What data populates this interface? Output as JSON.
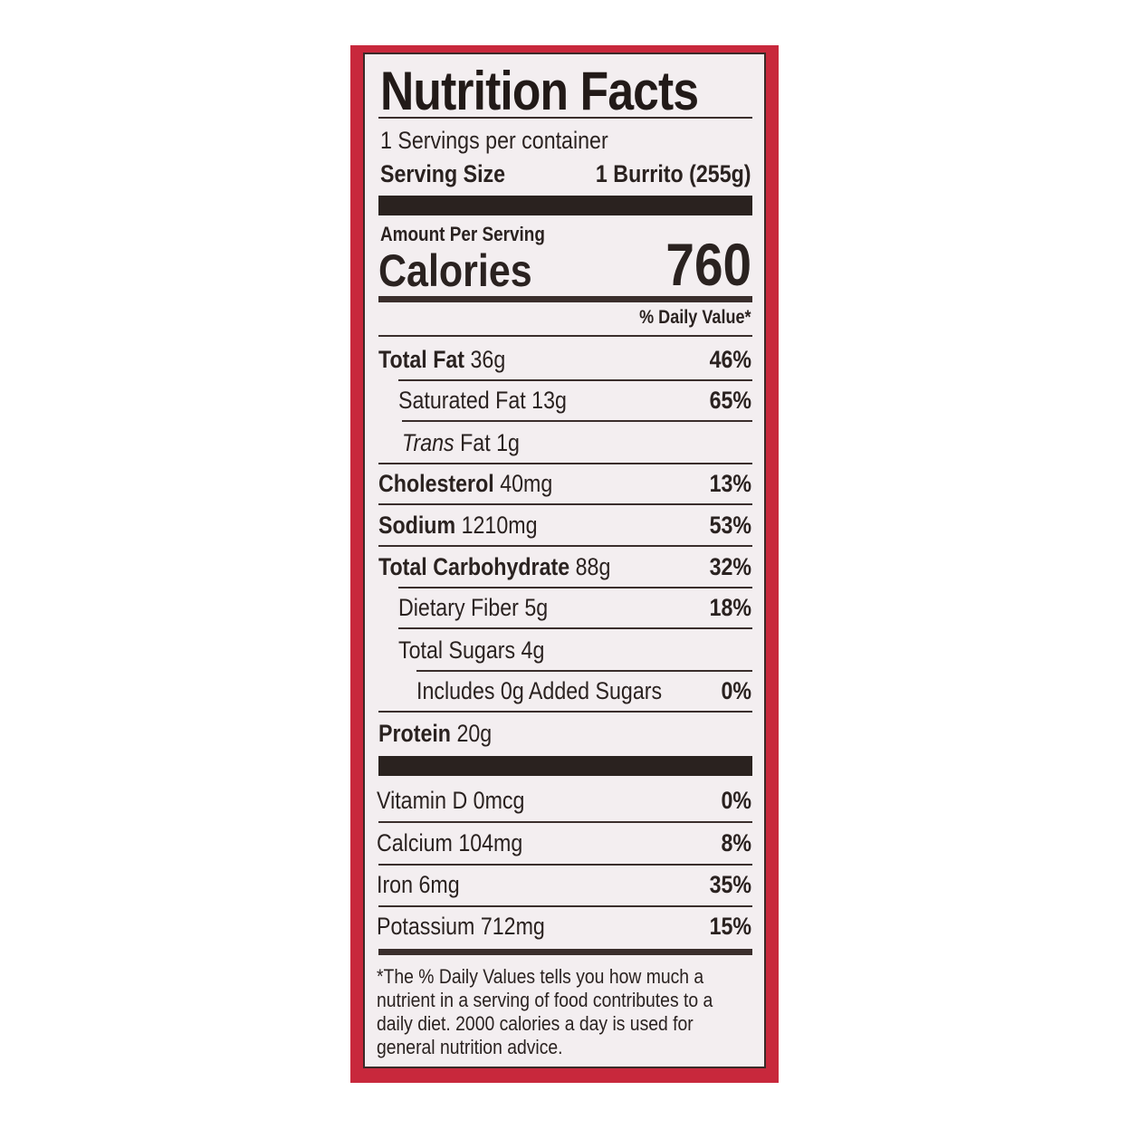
{
  "label": {
    "title": "Nutrition Facts",
    "servings_per_container": "1 Servings per container",
    "serving_size_label": "Serving Size",
    "serving_size_value": "1 Burrito (255g)",
    "amount_per_serving": "Amount Per Serving",
    "calories_label": "Calories",
    "calories_value": "760",
    "daily_value_header": "% Daily Value*",
    "nutrients": [
      {
        "name": "Total Fat",
        "amount": "36g",
        "dv": "46%"
      },
      {
        "name": "Saturated Fat",
        "amount": "13g",
        "dv": "65%"
      },
      {
        "name": "Trans",
        "name_suffix": "Fat",
        "amount": "1g",
        "dv": ""
      },
      {
        "name": "Cholesterol",
        "amount": "40mg",
        "dv": "13%"
      },
      {
        "name": "Sodium",
        "amount": "1210mg",
        "dv": "53%"
      },
      {
        "name": "Total Carbohydrate",
        "amount": "88g",
        "dv": "32%"
      },
      {
        "name": "Dietary Fiber",
        "amount": "5g",
        "dv": "18%"
      },
      {
        "name": "Total Sugars",
        "amount": "4g",
        "dv": ""
      },
      {
        "name": "Includes 0g Added Sugars",
        "amount": "",
        "dv": "0%"
      },
      {
        "name": "Protein",
        "amount": "20g",
        "dv": ""
      }
    ],
    "vitamins": [
      {
        "text": "Vitamin D 0mcg",
        "dv": "0%"
      },
      {
        "text": "Calcium 104mg",
        "dv": "8%"
      },
      {
        "text": "Iron 6mg",
        "dv": "35%"
      },
      {
        "text": "Potassium 712mg",
        "dv": "15%"
      }
    ],
    "footnote": "*The % Daily Values tells you how much a nutrient in a serving of food contributes to a daily diet. 2000 calories a day is used for general nutrition advice.",
    "colors": {
      "package_red": "#c8283c",
      "ink": "#2a2220",
      "label_bg": "#f3eef0"
    }
  }
}
